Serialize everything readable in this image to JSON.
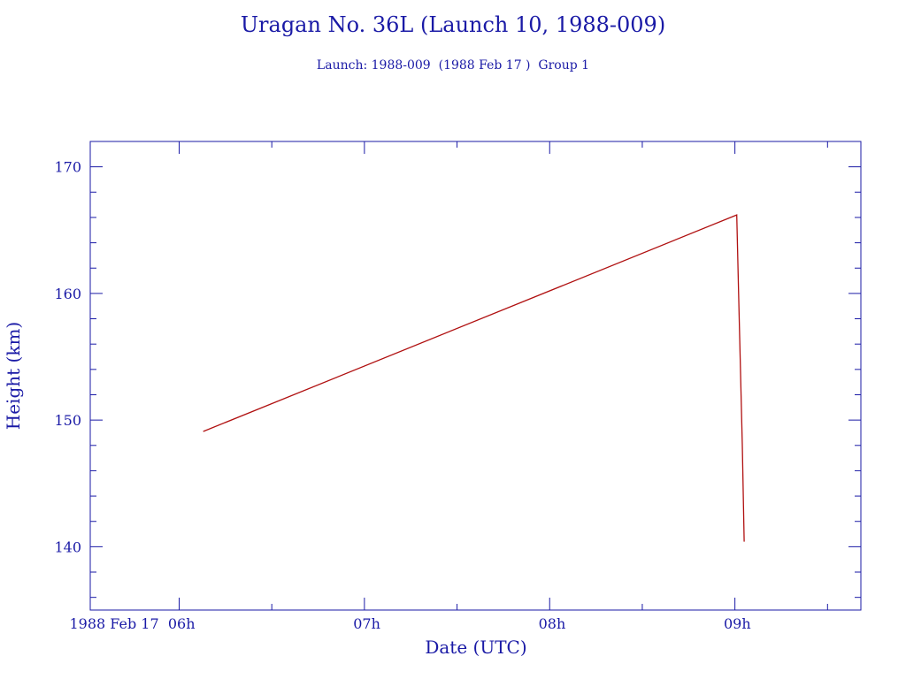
{
  "chart_data": {
    "type": "line",
    "title": "Uragan No. 36L (Launch 10, 1988-009)",
    "subtitle": "Launch: 1988-009  (1988 Feb 17 )  Group 1",
    "xlabel": "Date (UTC)",
    "ylabel": "Height (km)",
    "x_unit": "hours UTC, 1988 Feb 17",
    "xlim": [
      5.52,
      9.68
    ],
    "ylim": [
      135,
      172
    ],
    "x_ticks": [
      {
        "value": 6,
        "label": "1988 Feb 17  06h"
      },
      {
        "value": 7,
        "label": "07h"
      },
      {
        "value": 8,
        "label": "08h"
      },
      {
        "value": 9,
        "label": "09h"
      }
    ],
    "y_ticks": [
      {
        "value": 140,
        "label": "140"
      },
      {
        "value": 150,
        "label": "150"
      },
      {
        "value": 160,
        "label": "160"
      },
      {
        "value": 170,
        "label": "170"
      }
    ],
    "series": [
      {
        "color": "#b01010",
        "x": [
          6.13,
          9.01,
          9.02,
          9.04,
          9.05
        ],
        "y": [
          149.1,
          166.2,
          160.0,
          148.0,
          140.4
        ]
      }
    ],
    "grid": false,
    "legend": "none"
  },
  "colors": {
    "axis": "#1a1aa6",
    "line": "#b01010"
  }
}
